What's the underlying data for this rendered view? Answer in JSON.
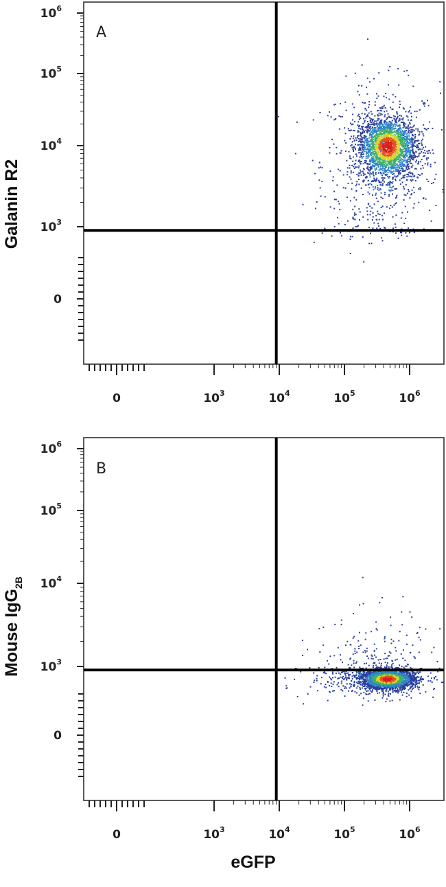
{
  "chart_data": [
    {
      "type": "scatter",
      "subtype": "flow-cytometry-density-dot-plot",
      "panel_label": "A",
      "xlabel": "",
      "ylabel": "Galanin R2",
      "x_scale": "biexponential",
      "y_scale": "biexponential",
      "x_ticks": [
        {
          "mantissa": "0",
          "exp": ""
        },
        {
          "mantissa": "10",
          "exp": "3"
        },
        {
          "mantissa": "10",
          "exp": "4"
        },
        {
          "mantissa": "10",
          "exp": "5"
        },
        {
          "mantissa": "10",
          "exp": "6"
        }
      ],
      "y_ticks": [
        {
          "mantissa": "0",
          "exp": ""
        },
        {
          "mantissa": "10",
          "exp": "3"
        },
        {
          "mantissa": "10",
          "exp": "4"
        },
        {
          "mantissa": "10",
          "exp": "5"
        },
        {
          "mantissa": "10",
          "exp": "6"
        }
      ],
      "gate": {
        "x": 9000,
        "y": 700
      },
      "population": {
        "center_x": 450000,
        "center_y": 10000,
        "count": 2200,
        "spread_x_decades": 0.22,
        "spread_y_decades": 0.2
      },
      "sparse_population": {
        "center_x": 350000,
        "center_y": 6000,
        "count": 650,
        "spread_x_decades": 0.45,
        "spread_y_decades": 0.55
      }
    },
    {
      "type": "scatter",
      "subtype": "flow-cytometry-density-dot-plot",
      "panel_label": "B",
      "xlabel": "eGFP",
      "ylabel": "Mouse IgG",
      "ylabel_subscript": "2B",
      "x_scale": "biexponential",
      "y_scale": "biexponential",
      "x_ticks": [
        {
          "mantissa": "0",
          "exp": ""
        },
        {
          "mantissa": "10",
          "exp": "3"
        },
        {
          "mantissa": "10",
          "exp": "4"
        },
        {
          "mantissa": "10",
          "exp": "5"
        },
        {
          "mantissa": "10",
          "exp": "6"
        }
      ],
      "y_ticks": [
        {
          "mantissa": "0",
          "exp": ""
        },
        {
          "mantissa": "10",
          "exp": "3"
        },
        {
          "mantissa": "10",
          "exp": "4"
        },
        {
          "mantissa": "10",
          "exp": "5"
        },
        {
          "mantissa": "10",
          "exp": "6"
        }
      ],
      "gate": {
        "x": 9000,
        "y": 700
      },
      "population": {
        "center_x": 450000,
        "center_y": 300,
        "count": 2200,
        "spread_x_decades": 0.2,
        "spread_y_decades": 0.22
      },
      "sparse_population": {
        "center_x": 300000,
        "center_y": 400,
        "count": 650,
        "spread_x_decades": 0.5,
        "spread_y_decades": 0.45
      }
    }
  ],
  "colors": {
    "low_density": "#2a3f9e",
    "mid_low_density": "#2f86c9",
    "mid_density": "#3fb26a",
    "mid_high_density": "#d9d62b",
    "high_density": "#e8531f",
    "peak_density": "#d81e1e",
    "gate_line": "#000000",
    "frame": "#222222"
  }
}
